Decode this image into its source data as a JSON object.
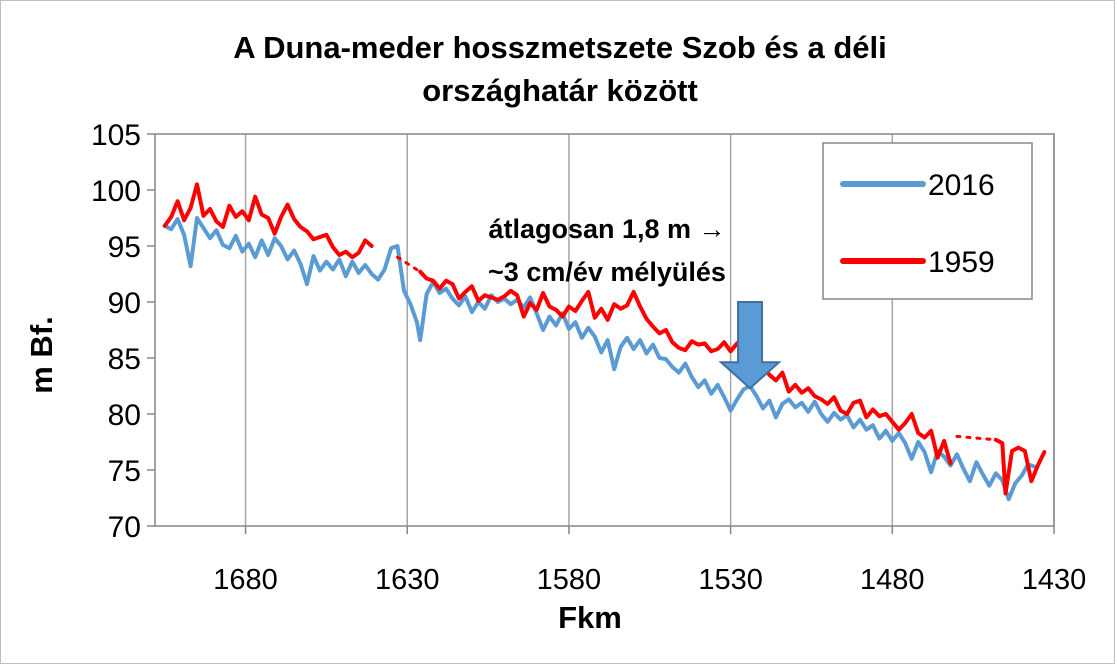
{
  "chart_data": {
    "type": "line",
    "title_lines": [
      "A Duna-meder hosszmetszete Szob és a déli",
      "országhatár között"
    ],
    "xlabel": "Fkm",
    "ylabel": "m Bf.",
    "xlim": [
      1708,
      1430
    ],
    "x_reversed": true,
    "ylim": [
      70,
      105
    ],
    "x_ticks": [
      1680,
      1630,
      1580,
      1530,
      1480,
      1430
    ],
    "y_ticks": [
      70,
      75,
      80,
      85,
      90,
      95,
      100,
      105
    ],
    "grid": "vertical",
    "legend": "top-right",
    "annotation_lines": [
      "átlagosan 1,8 m →",
      "~3 cm/év mélyülés"
    ],
    "arrow_at": {
      "x": 1524,
      "y_from": 90,
      "y_to": 82.3
    },
    "series": [
      {
        "name": "2016",
        "color": "#5b9bd5",
        "points": [
          [
            1705,
            96.8
          ],
          [
            1703,
            96.5
          ],
          [
            1701,
            97.4
          ],
          [
            1699,
            96.0
          ],
          [
            1697,
            93.2
          ],
          [
            1695,
            97.5
          ],
          [
            1693,
            96.6
          ],
          [
            1691,
            95.7
          ],
          [
            1689,
            96.4
          ],
          [
            1687,
            95.1
          ],
          [
            1685,
            94.8
          ],
          [
            1683,
            95.9
          ],
          [
            1681,
            94.5
          ],
          [
            1679,
            95.2
          ],
          [
            1677,
            94.0
          ],
          [
            1675,
            95.5
          ],
          [
            1673,
            94.2
          ],
          [
            1671,
            95.7
          ],
          [
            1669,
            95.0
          ],
          [
            1667,
            93.8
          ],
          [
            1665,
            94.6
          ],
          [
            1663,
            93.4
          ],
          [
            1661,
            91.6
          ],
          [
            1659,
            94.1
          ],
          [
            1657,
            92.8
          ],
          [
            1655,
            93.6
          ],
          [
            1653,
            92.9
          ],
          [
            1651,
            93.8
          ],
          [
            1649,
            92.3
          ],
          [
            1647,
            93.6
          ],
          [
            1645,
            92.6
          ],
          [
            1643,
            93.3
          ],
          [
            1641,
            92.5
          ],
          [
            1639,
            92.0
          ],
          [
            1637,
            92.9
          ],
          [
            1635,
            94.8
          ],
          [
            1633,
            95.0
          ],
          [
            1631,
            91.0
          ],
          [
            1629,
            89.8
          ],
          [
            1627,
            88.2
          ],
          [
            1626,
            86.6
          ],
          [
            1624,
            90.7
          ],
          [
            1622,
            91.8
          ],
          [
            1620,
            90.8
          ],
          [
            1618,
            91.2
          ],
          [
            1616,
            90.3
          ],
          [
            1614,
            89.7
          ],
          [
            1612,
            90.5
          ],
          [
            1610,
            89.1
          ],
          [
            1608,
            90.0
          ],
          [
            1606,
            89.4
          ],
          [
            1604,
            90.6
          ],
          [
            1602,
            90.0
          ],
          [
            1600,
            90.3
          ],
          [
            1598,
            89.8
          ],
          [
            1596,
            90.2
          ],
          [
            1594,
            89.5
          ],
          [
            1592,
            90.4
          ],
          [
            1590,
            89.0
          ],
          [
            1588,
            87.5
          ],
          [
            1586,
            88.7
          ],
          [
            1584,
            87.9
          ],
          [
            1582,
            89.0
          ],
          [
            1580,
            87.6
          ],
          [
            1578,
            88.2
          ],
          [
            1576,
            86.8
          ],
          [
            1574,
            87.7
          ],
          [
            1572,
            86.9
          ],
          [
            1570,
            85.5
          ],
          [
            1568,
            86.6
          ],
          [
            1566,
            84.0
          ],
          [
            1564,
            86.0
          ],
          [
            1562,
            86.8
          ],
          [
            1560,
            85.8
          ],
          [
            1558,
            86.6
          ],
          [
            1556,
            85.4
          ],
          [
            1554,
            86.2
          ],
          [
            1552,
            85.0
          ],
          [
            1550,
            84.9
          ],
          [
            1548,
            84.2
          ],
          [
            1546,
            83.7
          ],
          [
            1544,
            84.5
          ],
          [
            1542,
            83.3
          ],
          [
            1540,
            82.4
          ],
          [
            1538,
            83.0
          ],
          [
            1536,
            81.8
          ],
          [
            1534,
            82.6
          ],
          [
            1532,
            81.5
          ],
          [
            1530,
            80.3
          ],
          [
            1528,
            81.3
          ],
          [
            1526,
            82.2
          ],
          [
            1524,
            82.5
          ],
          [
            1522,
            81.6
          ],
          [
            1520,
            80.5
          ],
          [
            1518,
            81.2
          ],
          [
            1516,
            79.7
          ],
          [
            1514,
            80.9
          ],
          [
            1512,
            81.3
          ],
          [
            1510,
            80.6
          ],
          [
            1508,
            81.0
          ],
          [
            1506,
            80.2
          ],
          [
            1504,
            81.1
          ],
          [
            1502,
            80.0
          ],
          [
            1500,
            79.3
          ],
          [
            1498,
            80.1
          ],
          [
            1496,
            79.5
          ],
          [
            1494,
            79.9
          ],
          [
            1492,
            78.8
          ],
          [
            1490,
            79.5
          ],
          [
            1488,
            78.6
          ],
          [
            1486,
            79.0
          ],
          [
            1484,
            77.8
          ],
          [
            1482,
            78.5
          ],
          [
            1480,
            77.6
          ],
          [
            1478,
            78.3
          ],
          [
            1476,
            77.4
          ],
          [
            1474,
            76.0
          ],
          [
            1472,
            77.5
          ],
          [
            1470,
            76.6
          ],
          [
            1468,
            74.8
          ],
          [
            1466,
            76.7
          ],
          [
            1464,
            76.2
          ],
          [
            1462,
            75.4
          ],
          [
            1460,
            76.4
          ],
          [
            1458,
            75.1
          ],
          [
            1456,
            74.0
          ],
          [
            1454,
            75.7
          ],
          [
            1452,
            74.6
          ],
          [
            1450,
            73.6
          ],
          [
            1448,
            74.7
          ],
          [
            1446,
            74.1
          ],
          [
            1444,
            72.4
          ],
          [
            1442,
            73.8
          ],
          [
            1440,
            74.5
          ],
          [
            1438,
            75.5
          ],
          [
            1436,
            75.3
          ]
        ]
      },
      {
        "name": "1959",
        "color": "#ff0000",
        "points": [
          [
            1705,
            96.8
          ],
          [
            1703,
            97.6
          ],
          [
            1701,
            99.0
          ],
          [
            1699,
            97.3
          ],
          [
            1697,
            98.4
          ],
          [
            1695,
            100.5
          ],
          [
            1693,
            97.7
          ],
          [
            1691,
            98.3
          ],
          [
            1689,
            97.2
          ],
          [
            1687,
            96.7
          ],
          [
            1685,
            98.6
          ],
          [
            1683,
            97.6
          ],
          [
            1681,
            98.1
          ],
          [
            1679,
            97.3
          ],
          [
            1677,
            99.4
          ],
          [
            1675,
            97.8
          ],
          [
            1673,
            97.5
          ],
          [
            1671,
            96.1
          ],
          [
            1669,
            97.6
          ],
          [
            1667,
            98.7
          ],
          [
            1665,
            97.4
          ],
          [
            1663,
            96.7
          ],
          [
            1661,
            96.3
          ],
          [
            1659,
            95.6
          ],
          [
            1657,
            95.8
          ],
          [
            1655,
            96.0
          ],
          [
            1653,
            94.9
          ],
          [
            1651,
            94.2
          ],
          [
            1649,
            94.5
          ],
          [
            1647,
            94.0
          ],
          [
            1645,
            94.4
          ],
          [
            1643,
            95.5
          ],
          [
            1641,
            95.0
          ],
          [
            1641,
            95.0,
            "gap"
          ],
          [
            1633,
            94.0,
            "dot"
          ],
          [
            1626,
            92.7,
            "dot"
          ],
          [
            1626,
            92.7
          ],
          [
            1624,
            92.1
          ],
          [
            1622,
            91.9
          ],
          [
            1620,
            91.2
          ],
          [
            1618,
            91.9
          ],
          [
            1616,
            91.6
          ],
          [
            1614,
            90.3
          ],
          [
            1612,
            90.9
          ],
          [
            1610,
            91.4
          ],
          [
            1608,
            90.1
          ],
          [
            1606,
            90.6
          ],
          [
            1604,
            90.4
          ],
          [
            1602,
            90.2
          ],
          [
            1600,
            90.5
          ],
          [
            1598,
            91.0
          ],
          [
            1596,
            90.6
          ],
          [
            1594,
            88.7
          ],
          [
            1592,
            89.9
          ],
          [
            1590,
            89.3
          ],
          [
            1588,
            90.8
          ],
          [
            1586,
            89.6
          ],
          [
            1584,
            89.3
          ],
          [
            1582,
            88.7
          ],
          [
            1580,
            89.6
          ],
          [
            1578,
            89.2
          ],
          [
            1576,
            90.1
          ],
          [
            1574,
            90.9
          ],
          [
            1572,
            88.6
          ],
          [
            1570,
            89.4
          ],
          [
            1568,
            88.4
          ],
          [
            1566,
            89.8
          ],
          [
            1564,
            89.4
          ],
          [
            1562,
            89.7
          ],
          [
            1560,
            90.9
          ],
          [
            1558,
            89.6
          ],
          [
            1556,
            88.5
          ],
          [
            1554,
            87.8
          ],
          [
            1552,
            87.2
          ],
          [
            1550,
            87.5
          ],
          [
            1548,
            86.4
          ],
          [
            1546,
            85.9
          ],
          [
            1544,
            85.7
          ],
          [
            1542,
            86.5
          ],
          [
            1540,
            86.2
          ],
          [
            1538,
            86.3
          ],
          [
            1536,
            85.6
          ],
          [
            1534,
            85.8
          ],
          [
            1532,
            86.4
          ],
          [
            1530,
            85.6
          ],
          [
            1528,
            86.3
          ],
          [
            1526,
            85.3
          ],
          [
            1524,
            84.1
          ],
          [
            1522,
            85.5
          ],
          [
            1520,
            84.2
          ],
          [
            1518,
            83.5
          ],
          [
            1516,
            83.0
          ],
          [
            1514,
            83.7
          ],
          [
            1512,
            82.0
          ],
          [
            1510,
            82.6
          ],
          [
            1508,
            81.9
          ],
          [
            1506,
            82.3
          ],
          [
            1504,
            81.6
          ],
          [
            1502,
            81.3
          ],
          [
            1500,
            80.9
          ],
          [
            1498,
            81.5
          ],
          [
            1496,
            80.3
          ],
          [
            1494,
            80.0
          ],
          [
            1492,
            81.0
          ],
          [
            1490,
            81.2
          ],
          [
            1488,
            79.7
          ],
          [
            1486,
            80.4
          ],
          [
            1484,
            79.8
          ],
          [
            1482,
            80.0
          ],
          [
            1480,
            79.3
          ],
          [
            1478,
            78.6
          ],
          [
            1476,
            79.2
          ],
          [
            1474,
            80.0
          ],
          [
            1472,
            78.3
          ],
          [
            1470,
            77.9
          ],
          [
            1468,
            78.5
          ],
          [
            1466,
            76.1
          ],
          [
            1464,
            77.6
          ],
          [
            1462,
            75.6
          ],
          [
            1462,
            75.6,
            "gap"
          ],
          [
            1460,
            78.0,
            "dot"
          ],
          [
            1448,
            77.7,
            "dot"
          ],
          [
            1448,
            77.7
          ],
          [
            1446,
            77.4
          ],
          [
            1445,
            72.9
          ],
          [
            1443,
            76.7
          ],
          [
            1441,
            77.0
          ],
          [
            1439,
            76.7
          ],
          [
            1437,
            74.0
          ],
          [
            1435,
            75.4
          ],
          [
            1433,
            76.6
          ]
        ]
      }
    ]
  }
}
